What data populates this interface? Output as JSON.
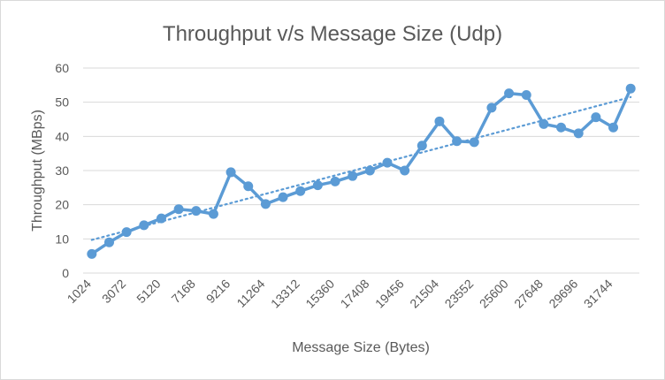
{
  "chart_data": {
    "type": "line",
    "title": "Throughput v/s Message Size (Udp)",
    "xlabel": "Message Size (Bytes)",
    "ylabel": "Throughput (MBps)",
    "ylim": [
      0,
      60
    ],
    "yticks": [
      "0",
      "10",
      "20",
      "30",
      "40",
      "50",
      "60"
    ],
    "x_labels": [
      "1024",
      "3072",
      "5120",
      "7168",
      "9216",
      "11264",
      "13312",
      "15360",
      "17408",
      "19456",
      "21504",
      "23552",
      "25600",
      "27648",
      "29696",
      "31744"
    ],
    "x": [
      1024,
      2048,
      3072,
      4096,
      5120,
      6144,
      7168,
      8192,
      9216,
      10240,
      11264,
      12288,
      13312,
      14336,
      15360,
      16384,
      17408,
      18432,
      19456,
      20480,
      21504,
      22528,
      23552,
      24576,
      25600,
      26624,
      27648,
      28672,
      29696,
      30720,
      31744,
      32768
    ],
    "series": [
      {
        "values": [
          5.6,
          9.0,
          12.0,
          14.0,
          16.0,
          18.7,
          18.2,
          17.3,
          29.5,
          25.4,
          20.2,
          22.2,
          24.0,
          25.7,
          26.8,
          28.4,
          30.0,
          32.3,
          30.0,
          37.3,
          44.4,
          38.6,
          38.3,
          48.4,
          52.6,
          52.1,
          43.6,
          42.6,
          40.9,
          45.6,
          42.6,
          54.0
        ],
        "color": "#5b9bd5"
      }
    ],
    "trendline": {
      "type": "linear",
      "color": "#5b9bd5",
      "style": "dotted",
      "start": 9.7,
      "end": 51.5
    },
    "grid": true,
    "legend": "none"
  }
}
